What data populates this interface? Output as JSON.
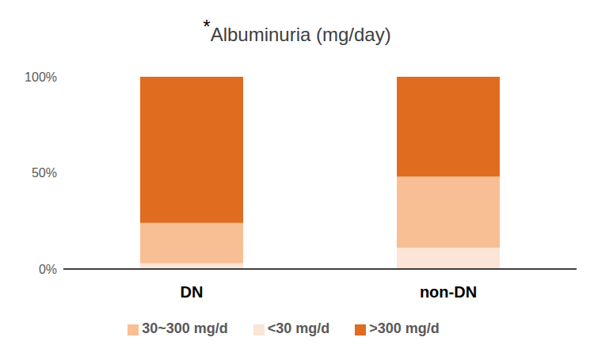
{
  "chart_data": {
    "type": "bar",
    "title": "*Albuminuria (mg/day)",
    "categories": [
      "DN",
      "non-DN"
    ],
    "series": [
      {
        "name": "<30 mg/d",
        "color": "#fbe5d6",
        "values": [
          3,
          11
        ]
      },
      {
        "name": "30~300 mg/d",
        "color": "#f8bf94",
        "values": [
          21,
          37
        ]
      },
      {
        "name": ">300 mg/d",
        "color": "#e06c1f",
        "values": [
          76,
          52
        ]
      }
    ],
    "stacked": true,
    "ylim": [
      0,
      100
    ],
    "yticks": [
      {
        "value": 0,
        "label": "0%"
      },
      {
        "value": 50,
        "label": "50%"
      },
      {
        "value": 100,
        "label": "100%"
      }
    ],
    "grid": false,
    "legend": "bottom"
  }
}
